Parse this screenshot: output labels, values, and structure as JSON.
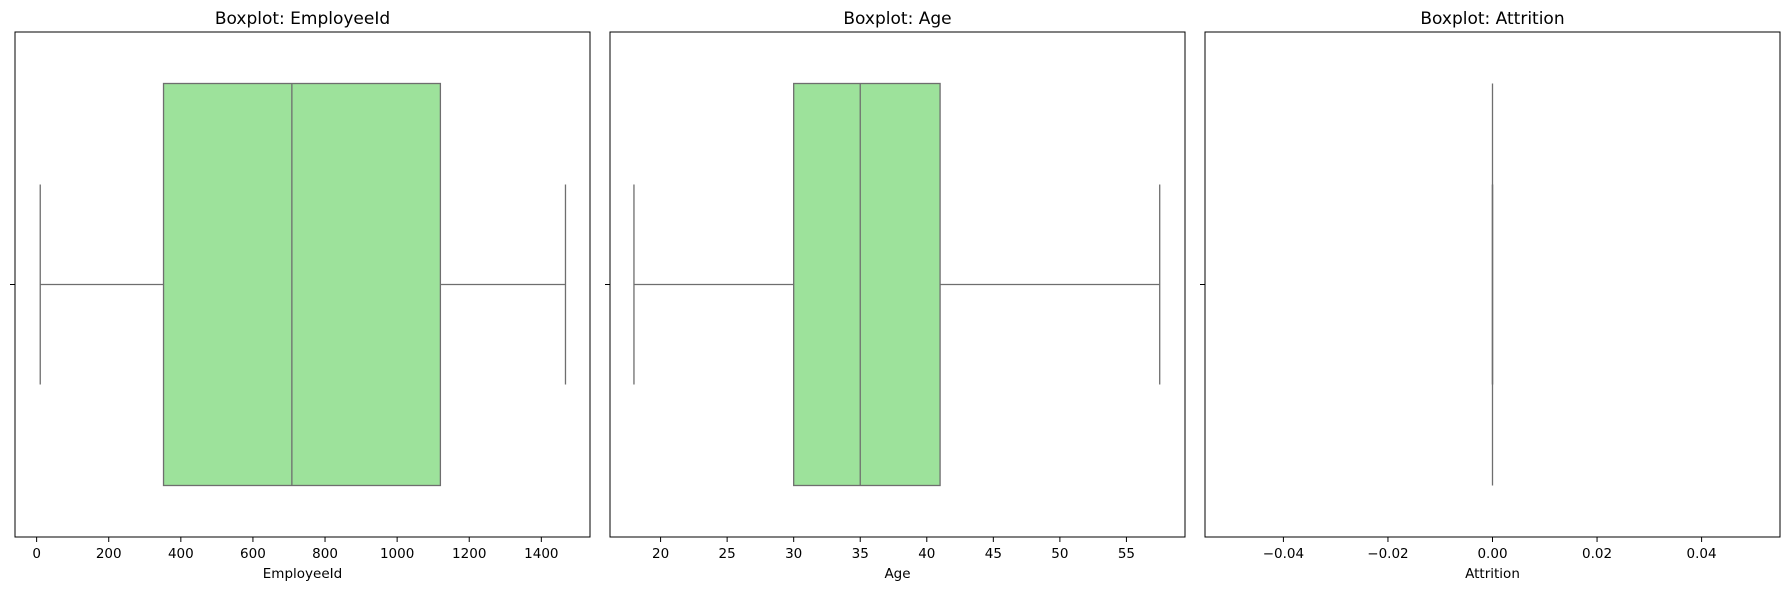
{
  "chart_data": [
    {
      "type": "box",
      "title": "Boxplot: EmployeeId",
      "xlabel": "EmployeeId",
      "ylabel": "",
      "xlim": [
        -60,
        1535
      ],
      "xticks": [
        0,
        200,
        400,
        600,
        800,
        1000,
        1200,
        1400
      ],
      "tick_labels": [
        "0",
        "200",
        "400",
        "600",
        "800",
        "1000",
        "1200",
        "1400"
      ],
      "box": {
        "whisker_low": 10,
        "q1": 352,
        "median": 708,
        "q3": 1120,
        "whisker_high": 1467
      },
      "box_color": "#9de29b",
      "line_color": "#6e6e6e",
      "grid": false
    },
    {
      "type": "box",
      "title": "Boxplot: Age",
      "xlabel": "Age",
      "ylabel": "",
      "xlim": [
        16.2,
        59.4
      ],
      "xticks": [
        20,
        25,
        30,
        35,
        40,
        45,
        50,
        55
      ],
      "tick_labels": [
        "20",
        "25",
        "30",
        "35",
        "40",
        "45",
        "50",
        "55"
      ],
      "box": {
        "whisker_low": 18,
        "q1": 30,
        "median": 35,
        "q3": 41,
        "whisker_high": 57.5
      },
      "box_color": "#9de29b",
      "line_color": "#6e6e6e",
      "grid": false
    },
    {
      "type": "box",
      "title": "Boxplot: Attrition",
      "xlabel": "Attrition",
      "ylabel": "",
      "xlim": [
        -0.055,
        0.055
      ],
      "xticks": [
        -0.04,
        -0.02,
        0.0,
        0.02,
        0.04
      ],
      "tick_labels": [
        "−0.04",
        "−0.02",
        "0.00",
        "0.02",
        "0.04"
      ],
      "box": {
        "whisker_low": 0,
        "q1": 0,
        "median": 0,
        "q3": 0,
        "whisker_high": 0
      },
      "box_color": "#9de29b",
      "line_color": "#6e6e6e",
      "grid": false
    }
  ]
}
